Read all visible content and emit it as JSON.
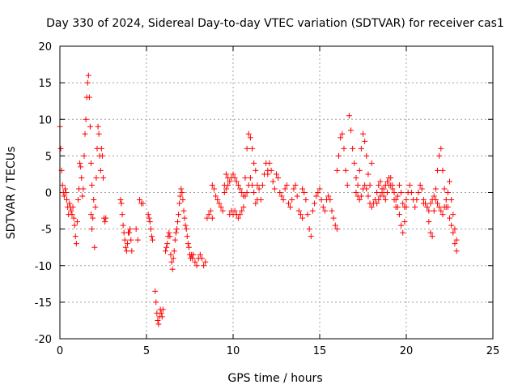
{
  "chart_data": {
    "type": "scatter",
    "title": "Day 330 of 2024, Sidereal Day-to-day VTEC variation (SDTVAR) for receiver cas1",
    "xlabel": "GPS time / hours",
    "ylabel": "SDTVAR / TECUs",
    "xlim": [
      0,
      25
    ],
    "ylim": [
      -20,
      20
    ],
    "xticks": [
      0,
      5,
      10,
      15,
      20,
      25
    ],
    "yticks": [
      -20,
      -15,
      -10,
      -5,
      0,
      5,
      10,
      15,
      20
    ],
    "grid": true,
    "marker": "+",
    "color": "#ff0000",
    "series": [
      {
        "name": "SDTVAR",
        "segments": [
          {
            "x": [
              0.0,
              0.05,
              0.1,
              0.15,
              0.2,
              0.25,
              0.3,
              0.35,
              0.4,
              0.45,
              0.5,
              0.55,
              0.6,
              0.65,
              0.7,
              0.75,
              0.8,
              0.85,
              0.9,
              0.95,
              1.0
            ],
            "y": [
              9.0,
              6.0,
              3.0,
              1.0,
              0.0,
              -0.5,
              0.5,
              0.0,
              -1.0,
              -2.0,
              -3.0,
              -1.5,
              -2.0,
              -2.5,
              -3.0,
              -2.0,
              -3.5,
              -4.5,
              -6.0,
              -7.0,
              -4.0
            ]
          },
          {
            "x": [
              1.05,
              1.1,
              1.15,
              1.2,
              1.25,
              1.3,
              1.35,
              1.4,
              1.45,
              1.5,
              1.55,
              1.6,
              1.65,
              1.7,
              1.75,
              1.8,
              1.85
            ],
            "y": [
              -1.0,
              0.5,
              4.0,
              3.5,
              2.0,
              -0.5,
              0.5,
              5.0,
              8.0,
              10.0,
              13.0,
              15.0,
              16.0,
              13.0,
              9.0,
              4.0,
              1.0
            ]
          },
          {
            "x": [
              1.8,
              1.85,
              1.9,
              1.95,
              2.0,
              2.05,
              2.1,
              2.15,
              2.2,
              2.25,
              2.3,
              2.35,
              2.4,
              2.45,
              2.5,
              2.55,
              2.6,
              2.65
            ],
            "y": [
              -3.0,
              -5.0,
              -3.5,
              -1.0,
              -7.5,
              -2.0,
              2.0,
              6.0,
              9.0,
              8.0,
              5.0,
              3.0,
              6.0,
              5.0,
              2.0,
              -3.5,
              -4.0,
              -3.5
            ]
          },
          {
            "x": [
              3.5,
              3.55,
              3.6,
              3.65,
              3.7,
              3.75,
              3.8,
              3.85,
              3.9,
              3.95,
              4.0,
              4.05,
              4.1,
              4.15
            ],
            "y": [
              -1.0,
              -1.5,
              -3.0,
              -4.5,
              -5.5,
              -6.5,
              -7.5,
              -8.0,
              -7.0,
              -5.5,
              -5.5,
              -5.0,
              -6.5,
              -8.0
            ]
          },
          {
            "x": [
              4.4,
              4.5,
              4.6,
              4.7,
              4.8
            ],
            "y": [
              -5.0,
              -6.5,
              -1.0,
              -1.5,
              -1.5
            ]
          },
          {
            "x": [
              5.1,
              5.15,
              5.2,
              5.25,
              5.3,
              5.35
            ],
            "y": [
              -3.0,
              -3.5,
              -4.0,
              -5.0,
              -6.0,
              -6.5
            ]
          },
          {
            "x": [
              5.5,
              5.55,
              5.6,
              5.65,
              5.7,
              5.75,
              5.8,
              5.85,
              5.9,
              5.95
            ],
            "y": [
              -13.5,
              -15.0,
              -16.5,
              -17.5,
              -18.0,
              -17.0,
              -16.0,
              -16.5,
              -17.0,
              -16.0
            ]
          },
          {
            "x": [
              6.1,
              6.15,
              6.2,
              6.25,
              6.3,
              6.35,
              6.4,
              6.45,
              6.5,
              6.55,
              6.6,
              6.65,
              6.7,
              6.75,
              6.8,
              6.85,
              6.9,
              6.95,
              7.0,
              7.05,
              7.1,
              7.15,
              7.2,
              7.25,
              7.3,
              7.35,
              7.4,
              7.45,
              7.5,
              7.55,
              7.6,
              7.65
            ],
            "y": [
              -8.0,
              -7.5,
              -7.0,
              -6.0,
              -5.5,
              -6.0,
              -8.5,
              -9.5,
              -10.5,
              -9.0,
              -8.0,
              -6.5,
              -5.5,
              -5.0,
              -4.0,
              -3.0,
              -1.5,
              -0.5,
              0.5,
              0.0,
              -1.0,
              -2.5,
              -3.5,
              -4.5,
              -5.0,
              -6.0,
              -7.0,
              -7.5,
              -8.5,
              -9.0,
              -8.5,
              -9.0
            ]
          },
          {
            "x": [
              7.7,
              7.8,
              7.9,
              8.0,
              8.1,
              8.2,
              8.3,
              8.4,
              8.5,
              8.6,
              8.7,
              8.8
            ],
            "y": [
              -8.5,
              -9.5,
              -10.0,
              -9.0,
              -8.5,
              -9.0,
              -10.0,
              -9.5,
              -3.5,
              -3.0,
              -2.5,
              -3.5
            ]
          },
          {
            "x": [
              8.8,
              8.9,
              9.0,
              9.1,
              9.2,
              9.3,
              9.4,
              9.5,
              9.6,
              9.7,
              9.8,
              9.9,
              10.0,
              10.1,
              10.2,
              10.3,
              10.4,
              10.5,
              10.6,
              10.7,
              10.8,
              10.9,
              11.0,
              11.1,
              11.2,
              11.3,
              11.4,
              11.5,
              11.6,
              11.7,
              11.8,
              11.9,
              12.0
            ],
            "y": [
              1.0,
              0.5,
              -0.5,
              -1.0,
              -1.5,
              -2.0,
              -2.5,
              1.0,
              2.5,
              2.0,
              -3.0,
              -2.5,
              -3.0,
              -2.5,
              -3.0,
              -3.5,
              -3.0,
              -2.5,
              -2.0,
              2.0,
              6.0,
              8.0,
              7.5,
              6.0,
              4.0,
              3.0,
              1.0,
              0.5,
              -1.0,
              1.0,
              2.5,
              4.0,
              3.0
            ]
          },
          {
            "x": [
              9.5,
              9.6,
              9.7,
              9.8,
              9.9,
              10.0,
              10.1,
              10.2,
              10.3,
              10.4,
              10.5,
              10.6,
              10.7,
              10.8,
              10.9,
              11.0,
              11.1,
              11.2,
              11.3,
              11.4
            ],
            "y": [
              0.0,
              0.5,
              1.0,
              1.5,
              2.0,
              2.5,
              2.0,
              1.5,
              1.0,
              0.5,
              0.0,
              -0.5,
              -0.5,
              0.0,
              1.0,
              2.0,
              1.0,
              0.0,
              -1.5,
              -1.0
            ]
          },
          {
            "x": [
              12.0,
              12.1,
              12.2,
              12.3,
              12.4,
              12.5,
              12.6,
              12.7,
              12.8,
              12.9,
              13.0,
              13.1,
              13.2,
              13.3,
              13.4,
              13.5,
              13.6,
              13.7,
              13.8,
              13.9,
              14.0
            ],
            "y": [
              2.5,
              4.0,
              3.0,
              1.5,
              0.5,
              2.5,
              2.0,
              0.0,
              -0.5,
              -1.0,
              0.5,
              1.0,
              -1.5,
              -2.0,
              -1.0,
              0.5,
              1.0,
              -0.5,
              -2.5,
              -3.0,
              -3.5
            ]
          },
          {
            "x": [
              14.0,
              14.1,
              14.2,
              14.3,
              14.4,
              14.5,
              14.6,
              14.7,
              14.8,
              14.9,
              15.0,
              15.1,
              15.2,
              15.3,
              15.4,
              15.5,
              15.6,
              15.7,
              15.8,
              15.9,
              16.0
            ],
            "y": [
              0.5,
              0.0,
              -1.0,
              -3.0,
              -5.0,
              -6.0,
              -2.5,
              -1.5,
              -0.5,
              0.0,
              0.5,
              -1.0,
              -2.0,
              -2.5,
              -1.0,
              -0.5,
              -1.0,
              -2.5,
              -3.5,
              -4.5,
              -5.0
            ]
          },
          {
            "x": [
              16.0,
              16.1,
              16.2,
              16.3,
              16.4,
              16.5,
              16.6,
              16.7,
              16.8,
              16.9,
              17.0,
              17.1,
              17.2,
              17.3,
              17.4,
              17.5,
              17.6,
              17.7,
              17.8,
              17.9,
              18.0
            ],
            "y": [
              3.0,
              5.0,
              7.5,
              8.0,
              6.0,
              3.0,
              1.0,
              10.5,
              8.5,
              6.0,
              4.0,
              2.0,
              1.0,
              3.0,
              6.0,
              8.0,
              7.0,
              5.0,
              2.5,
              1.0,
              4.0
            ]
          },
          {
            "x": [
              17.1,
              17.2,
              17.3,
              17.4,
              17.5,
              17.6,
              17.7,
              17.8,
              17.9,
              18.0,
              18.1,
              18.2,
              18.3,
              18.4,
              18.5,
              18.6,
              18.7,
              18.8,
              18.9,
              19.0,
              19.1,
              19.2,
              19.3,
              19.4,
              19.5,
              19.6,
              19.7,
              19.8,
              19.9,
              20.0
            ],
            "y": [
              0.0,
              -0.5,
              -1.0,
              -0.5,
              0.5,
              1.0,
              0.5,
              -0.5,
              -1.5,
              -2.0,
              -1.5,
              -1.0,
              0.0,
              1.0,
              1.5,
              0.5,
              -0.5,
              -1.0,
              0.0,
              1.0,
              2.0,
              1.0,
              0.0,
              -1.0,
              -2.0,
              -3.0,
              -4.5,
              -5.5,
              -4.0,
              -2.0
            ]
          },
          {
            "x": [
              18.3,
              18.4,
              18.5,
              18.6,
              18.7,
              18.8,
              18.9,
              19.0,
              19.1,
              19.2,
              19.3,
              19.4,
              19.5,
              19.6,
              19.7,
              19.8,
              19.9,
              20.0,
              20.1,
              20.2,
              20.3,
              20.4,
              20.5,
              20.6,
              20.7,
              20.8,
              20.9,
              21.0
            ],
            "y": [
              -1.5,
              -1.0,
              -0.5,
              0.0,
              0.5,
              1.0,
              1.5,
              2.0,
              1.0,
              0.5,
              -1.0,
              -2.0,
              -0.5,
              1.0,
              0.0,
              -1.5,
              -2.0,
              -1.0,
              0.0,
              1.0,
              0.0,
              -1.0,
              -2.0,
              -1.0,
              0.0,
              1.0,
              0.5,
              -1.5
            ]
          },
          {
            "x": [
              21.2,
              21.3,
              21.4,
              21.5,
              21.6,
              21.7,
              21.8,
              21.9,
              22.0,
              22.1,
              22.2,
              22.3,
              22.4,
              22.5,
              22.6,
              22.7,
              22.8,
              22.9
            ],
            "y": [
              -2.0,
              -4.0,
              -5.5,
              -6.0,
              -2.5,
              0.5,
              3.0,
              5.0,
              6.0,
              3.0,
              0.5,
              -2.0,
              0.0,
              1.5,
              -1.0,
              -3.0,
              -5.0,
              -6.5
            ]
          },
          {
            "x": [
              21.0,
              21.1,
              21.2,
              21.3,
              21.4,
              21.5,
              21.6,
              21.7,
              21.8,
              21.9,
              22.0,
              22.1,
              22.2,
              22.3,
              22.4,
              22.5,
              22.6,
              22.7,
              22.8,
              22.9
            ],
            "y": [
              -1.0,
              -1.5,
              -2.0,
              -2.5,
              -1.5,
              -1.0,
              -0.5,
              -1.0,
              -1.5,
              -2.0,
              -2.5,
              -3.0,
              -2.0,
              -1.0,
              -2.0,
              -3.5,
              -4.5,
              -5.5,
              -7.0,
              -8.0
            ]
          }
        ]
      }
    ]
  }
}
